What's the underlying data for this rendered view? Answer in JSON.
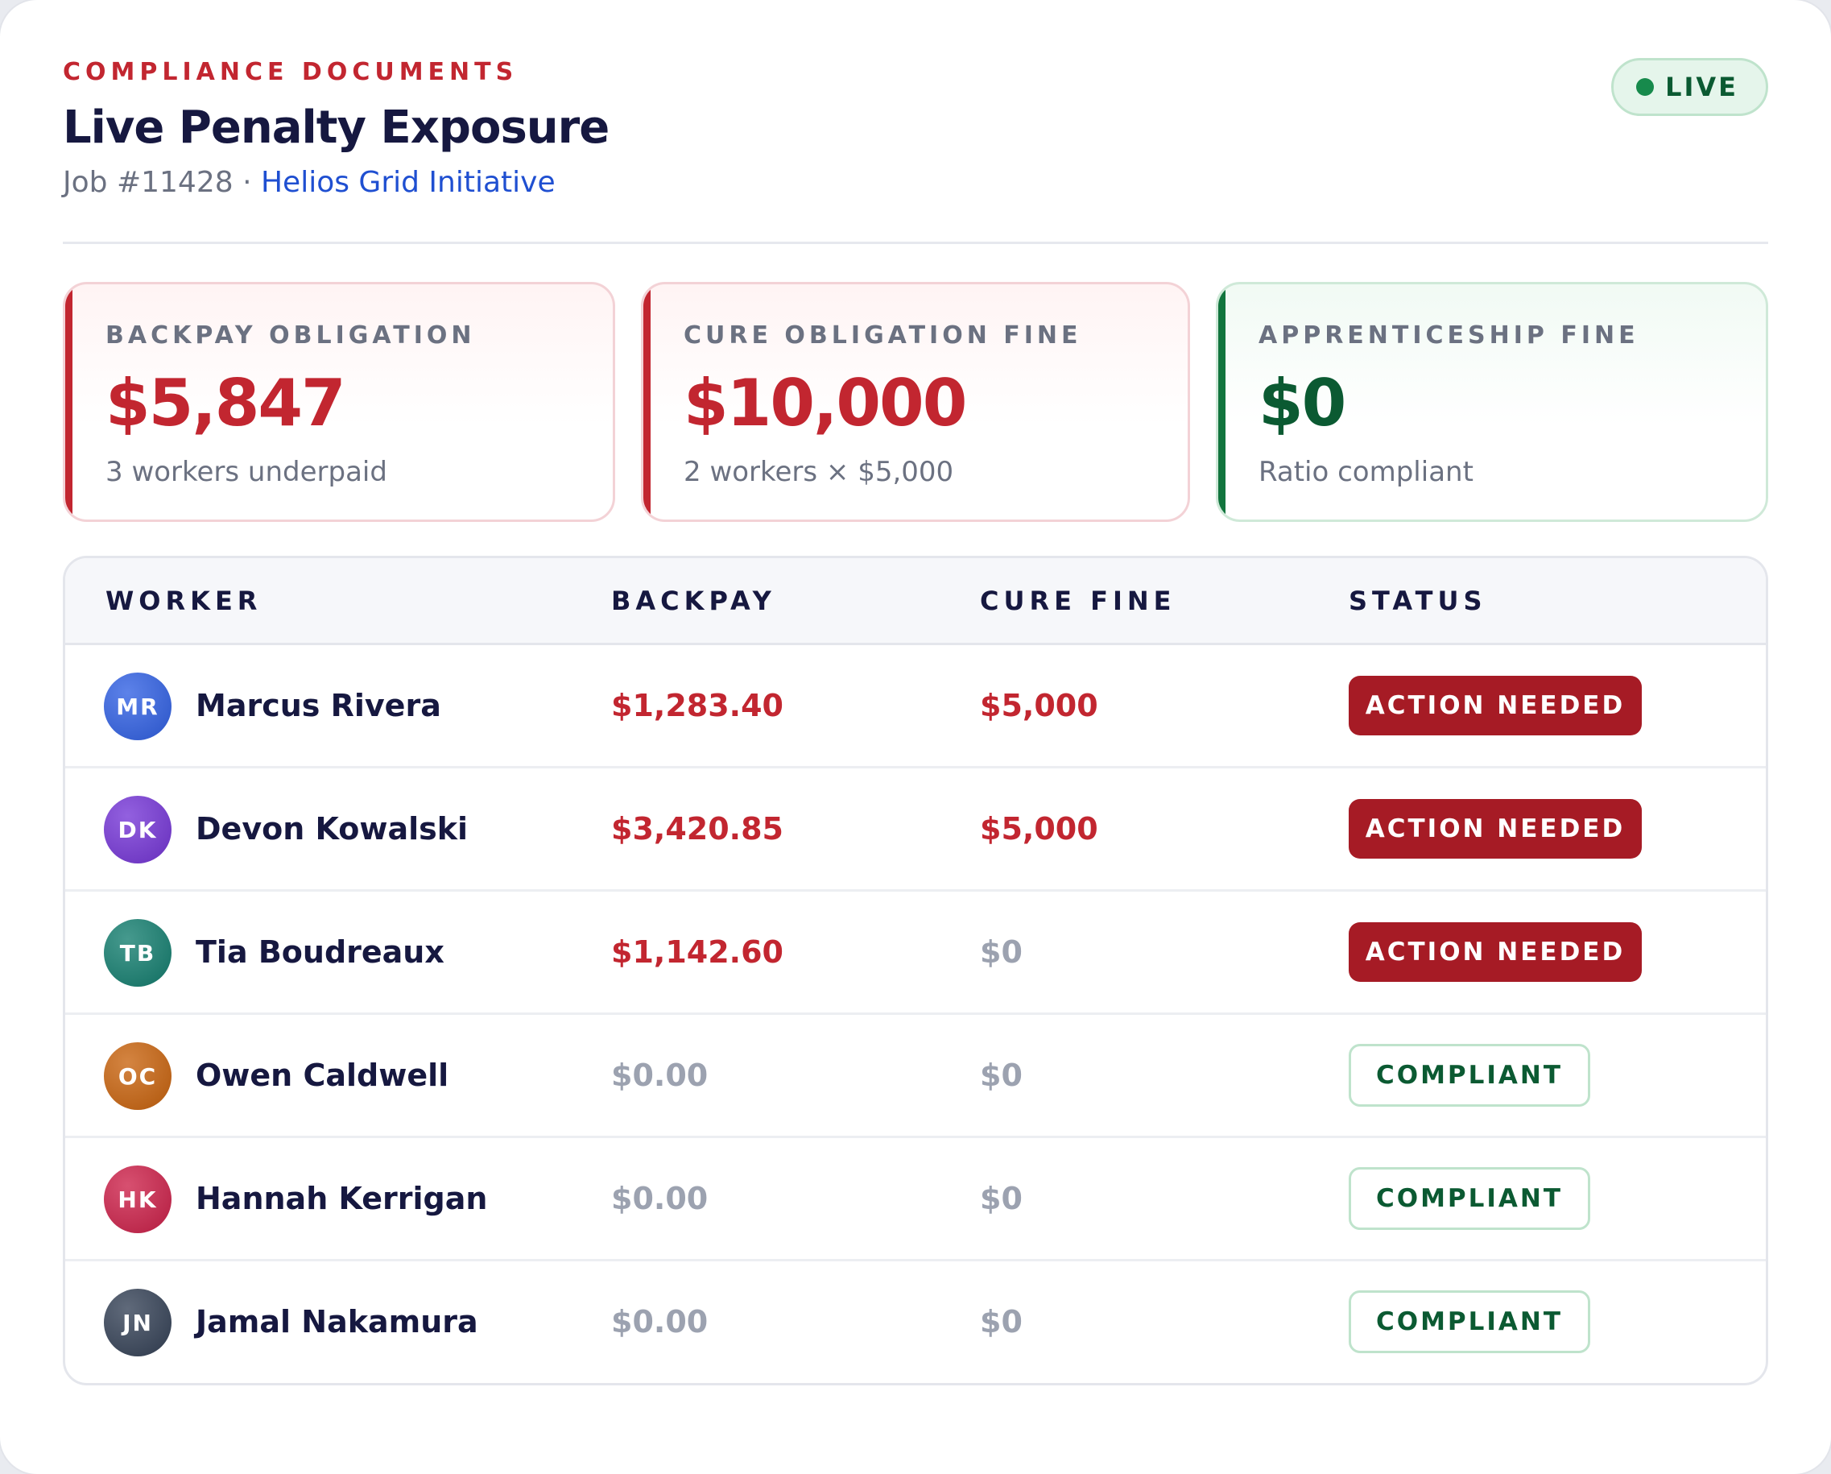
{
  "header": {
    "eyebrow": "COMPLIANCE DOCUMENTS",
    "title": "Live Penalty Exposure",
    "job": "Job #11428",
    "separator": " · ",
    "project": "Helios Grid Initiative",
    "live_label": "LIVE"
  },
  "stats": [
    {
      "label": "BACKPAY OBLIGATION",
      "value": "$5,847",
      "note": "3 workers underpaid",
      "tone": "red"
    },
    {
      "label": "CURE OBLIGATION FINE",
      "value": "$10,000",
      "note": "2 workers × $5,000",
      "tone": "red"
    },
    {
      "label": "APPRENTICESHIP FINE",
      "value": "$0",
      "note": "Ratio compliant",
      "tone": "green"
    }
  ],
  "table": {
    "columns": [
      "WORKER",
      "BACKPAY",
      "CURE FINE",
      "STATUS"
    ],
    "rows": [
      {
        "initials": "MR",
        "name": "Marcus Rivera",
        "backpay": "$1,283.40",
        "cure": "$5,000",
        "status": "ACTION NEEDED",
        "avatar_color": "#2f5fe3"
      },
      {
        "initials": "DK",
        "name": "Devon Kowalski",
        "backpay": "$3,420.85",
        "cure": "$5,000",
        "status": "ACTION NEEDED",
        "avatar_color": "#7434d6"
      },
      {
        "initials": "TB",
        "name": "Tia Boudreaux",
        "backpay": "$1,142.60",
        "cure": "$0",
        "status": "ACTION NEEDED",
        "avatar_color": "#127d6e"
      },
      {
        "initials": "OC",
        "name": "Owen Caldwell",
        "backpay": "$0.00",
        "cure": "$0",
        "status": "COMPLIANT",
        "avatar_color": "#c8620c"
      },
      {
        "initials": "HK",
        "name": "Hannah Kerrigan",
        "backpay": "$0.00",
        "cure": "$0",
        "status": "COMPLIANT",
        "avatar_color": "#cc1f48"
      },
      {
        "initials": "JN",
        "name": "Jamal Nakamura",
        "backpay": "$0.00",
        "cure": "$0",
        "status": "COMPLIANT",
        "avatar_color": "#334055"
      }
    ]
  },
  "colors": {
    "accent_red": "#c22630",
    "badge_red": "#a61b25",
    "accent_green": "#0b5a32",
    "link_blue": "#1f4fd1"
  }
}
